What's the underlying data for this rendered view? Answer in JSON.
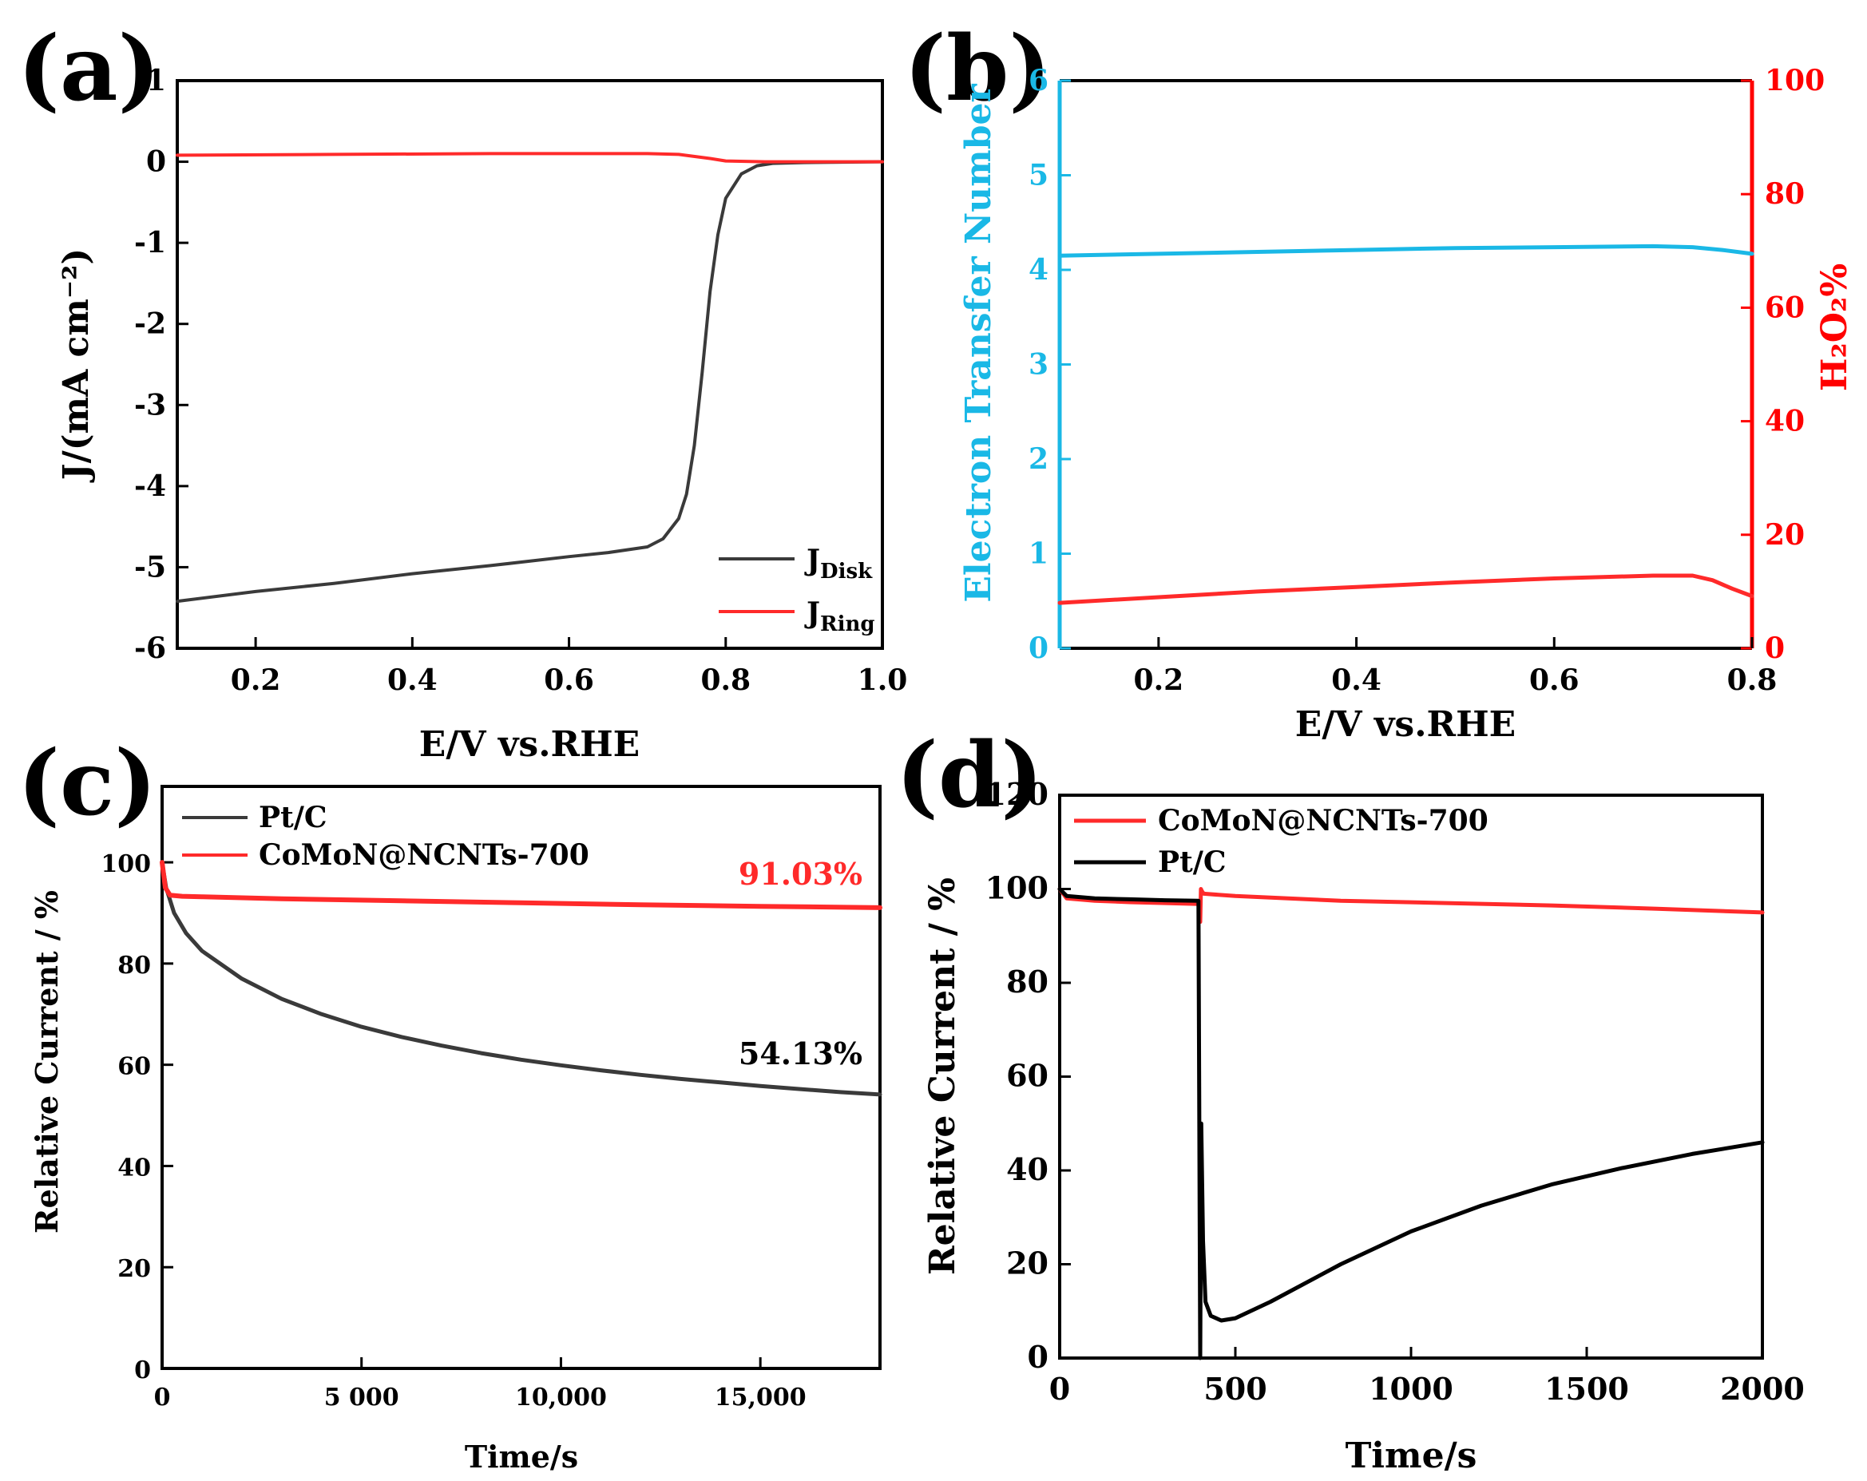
{
  "colors": {
    "black": "#000000",
    "dark_gray": "#3a3a3a",
    "red": "#ff2a2a",
    "cyan": "#1ab8e6",
    "axis_red": "#ff0000"
  },
  "chart_data": [
    {
      "panel": "(a)",
      "type": "line",
      "xlabel": "E/V vs.RHE",
      "ylabel": "J/(mA cm⁻²)",
      "xlim": [
        0.1,
        1.0
      ],
      "ylim": [
        -6,
        1
      ],
      "xticks": [
        0.2,
        0.4,
        0.6,
        0.8,
        1.0
      ],
      "xtick_labels": [
        "0.2",
        "0.4",
        "0.6",
        "0.8",
        "1.0"
      ],
      "yticks": [
        1,
        0,
        -1,
        -2,
        -3,
        -4,
        -5,
        -6
      ],
      "ytick_labels": [
        "1",
        "0",
        "-1",
        "-2",
        "-3",
        "-4",
        "-5",
        "-6"
      ],
      "legend": [
        {
          "name": "J",
          "sub": "Disk",
          "color": "#3a3a3a"
        },
        {
          "name": "J",
          "sub": "Ring",
          "color": "#ff2a2a"
        }
      ],
      "series": [
        {
          "name": "JDisk",
          "color": "#3a3a3a",
          "x": [
            0.1,
            0.2,
            0.3,
            0.4,
            0.5,
            0.6,
            0.65,
            0.7,
            0.72,
            0.74,
            0.75,
            0.76,
            0.77,
            0.78,
            0.79,
            0.8,
            0.82,
            0.84,
            0.86,
            0.9,
            1.0
          ],
          "y": [
            -5.42,
            -5.3,
            -5.2,
            -5.08,
            -4.98,
            -4.87,
            -4.82,
            -4.75,
            -4.65,
            -4.4,
            -4.1,
            -3.5,
            -2.6,
            -1.6,
            -0.9,
            -0.45,
            -0.15,
            -0.05,
            -0.02,
            -0.01,
            0.0
          ]
        },
        {
          "name": "JRing",
          "color": "#ff2a2a",
          "x": [
            0.1,
            0.3,
            0.5,
            0.7,
            0.74,
            0.78,
            0.8,
            0.85,
            1.0
          ],
          "y": [
            0.08,
            0.09,
            0.1,
            0.1,
            0.09,
            0.04,
            0.01,
            0.0,
            0.0
          ]
        }
      ]
    },
    {
      "panel": "(b)",
      "type": "line",
      "xlabel": "E/V vs.RHE",
      "ylabel_left": "Electron Transfer Number",
      "ylabel_right": "H₂O₂%",
      "xlim": [
        0.1,
        0.8
      ],
      "ylim_left": [
        0,
        6
      ],
      "ylim_right": [
        0,
        100
      ],
      "xticks": [
        0.2,
        0.4,
        0.6,
        0.8
      ],
      "xtick_labels": [
        "0.2",
        "0.4",
        "0.6",
        "0.8"
      ],
      "yticks_left": [
        0,
        1,
        2,
        3,
        4,
        5,
        6
      ],
      "ytick_labels_left": [
        "0",
        "1",
        "2",
        "3",
        "4",
        "5",
        "6"
      ],
      "yticks_right": [
        0,
        20,
        40,
        60,
        80,
        100
      ],
      "ytick_labels_right": [
        "0",
        "20",
        "40",
        "60",
        "80",
        "100"
      ],
      "series": [
        {
          "name": "Electron Transfer Number",
          "axis": "left",
          "color": "#1ab8e6",
          "x": [
            0.1,
            0.2,
            0.3,
            0.4,
            0.5,
            0.6,
            0.7,
            0.74,
            0.77,
            0.8
          ],
          "y": [
            4.15,
            4.17,
            4.19,
            4.21,
            4.23,
            4.24,
            4.25,
            4.24,
            4.21,
            4.17
          ]
        },
        {
          "name": "H2O2%",
          "axis": "right",
          "color": "#ff2a2a",
          "x": [
            0.1,
            0.2,
            0.3,
            0.4,
            0.5,
            0.6,
            0.7,
            0.74,
            0.76,
            0.78,
            0.8
          ],
          "y": [
            8.0,
            9.0,
            10.0,
            10.8,
            11.6,
            12.3,
            12.8,
            12.8,
            12.0,
            10.5,
            9.2
          ]
        }
      ]
    },
    {
      "panel": "(c)",
      "type": "line",
      "xlabel": "Time/s",
      "ylabel": "Relative Current / %",
      "xlim": [
        0,
        18000
      ],
      "ylim": [
        0,
        115
      ],
      "xticks": [
        0,
        5000,
        10000,
        15000
      ],
      "xtick_labels": [
        "0",
        "5 000",
        "10,000",
        "15,000"
      ],
      "yticks": [
        0,
        20,
        40,
        60,
        80,
        100
      ],
      "ytick_labels": [
        "0",
        "20",
        "40",
        "60",
        "80",
        "100"
      ],
      "legend": [
        {
          "name": "Pt/C",
          "color": "#3a3a3a"
        },
        {
          "name": "CoMoN@NCNTs-700",
          "color": "#ff2a2a"
        }
      ],
      "annotations": [
        {
          "text": "91.03%",
          "color": "#ff2a2a"
        },
        {
          "text": "54.13%",
          "color": "#000000"
        }
      ],
      "series": [
        {
          "name": "Pt/C",
          "color": "#3a3a3a",
          "x": [
            0,
            100,
            300,
            600,
            1000,
            2000,
            3000,
            4000,
            5000,
            6000,
            7000,
            8000,
            9000,
            10000,
            11000,
            12000,
            13000,
            14000,
            15000,
            16000,
            17000,
            18000
          ],
          "y": [
            100,
            95,
            90,
            86,
            82.5,
            77,
            73,
            70,
            67.5,
            65.5,
            63.8,
            62.3,
            61,
            59.9,
            58.9,
            58,
            57.2,
            56.5,
            55.8,
            55.2,
            54.6,
            54.13
          ]
        },
        {
          "name": "CoMoN@NCNTs-700",
          "color": "#ff2a2a",
          "x": [
            0,
            80,
            200,
            500,
            1000,
            3000,
            6000,
            9000,
            12000,
            15000,
            18000
          ],
          "y": [
            100,
            95,
            93.5,
            93.3,
            93.2,
            92.8,
            92.4,
            92,
            91.6,
            91.3,
            91.03
          ]
        }
      ]
    },
    {
      "panel": "(d)",
      "type": "line",
      "xlabel": "Time/s",
      "ylabel": "Relative Current / %",
      "xlim": [
        0,
        2000
      ],
      "ylim": [
        0,
        120
      ],
      "xticks": [
        0,
        500,
        1000,
        1500,
        2000
      ],
      "xtick_labels": [
        "0",
        "500",
        "1000",
        "1500",
        "2000"
      ],
      "yticks": [
        0,
        20,
        40,
        60,
        80,
        100,
        120
      ],
      "ytick_labels": [
        "0",
        "20",
        "40",
        "60",
        "80",
        "100",
        "120"
      ],
      "legend": [
        {
          "name": "CoMoN@NCNTs-700",
          "color": "#ff2a2a"
        },
        {
          "name": "Pt/C",
          "color": "#000000"
        }
      ],
      "series": [
        {
          "name": "CoMoN@NCNTs-700",
          "color": "#ff2a2a",
          "x": [
            0,
            20,
            100,
            200,
            300,
            395,
            400,
            402,
            405,
            410,
            500,
            800,
            1100,
            1400,
            1700,
            2000
          ],
          "y": [
            100,
            98,
            97.5,
            97.2,
            97,
            96.8,
            93,
            100,
            99.5,
            99,
            98.5,
            97.5,
            97,
            96.5,
            95.8,
            95
          ]
        },
        {
          "name": "Pt/C",
          "color": "#000000",
          "x": [
            0,
            20,
            100,
            200,
            300,
            395,
            400,
            403,
            408,
            415,
            430,
            460,
            500,
            600,
            800,
            1000,
            1200,
            1400,
            1600,
            1800,
            2000
          ],
          "y": [
            100,
            98.5,
            98,
            97.8,
            97.6,
            97.5,
            0,
            50,
            25,
            12,
            9,
            8,
            8.5,
            12,
            20,
            27,
            32.5,
            37,
            40.5,
            43.5,
            46
          ]
        }
      ]
    }
  ]
}
